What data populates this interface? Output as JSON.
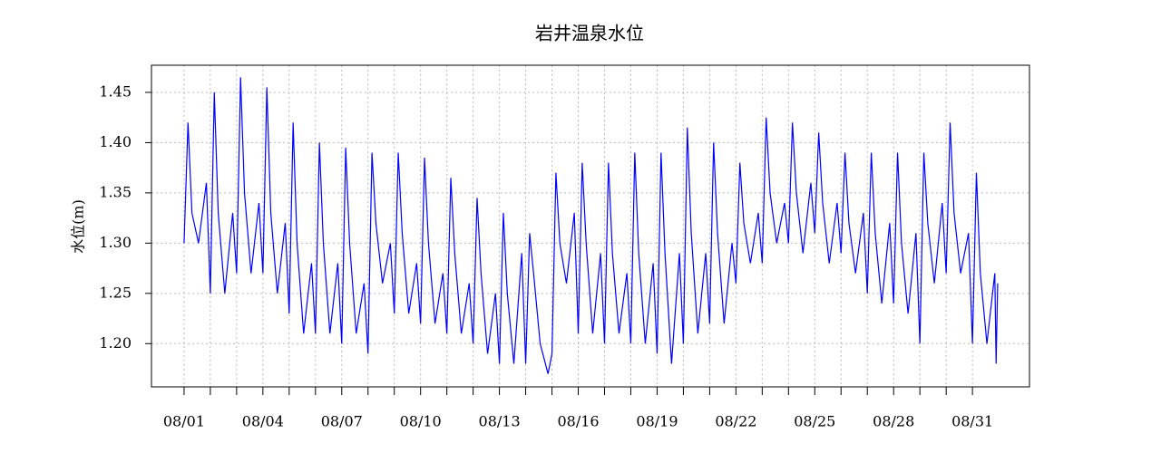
{
  "chart_data": {
    "type": "line",
    "title": "岩井温泉水位",
    "y_label": "水位(m)",
    "x": [
      0,
      0.15,
      0.3,
      0.55,
      0.85,
      1,
      1.15,
      1.3,
      1.55,
      1.85,
      2,
      2.15,
      2.3,
      2.55,
      2.85,
      3,
      3.15,
      3.3,
      3.55,
      3.85,
      4,
      4.15,
      4.3,
      4.55,
      4.85,
      5,
      5.15,
      5.3,
      5.55,
      5.85,
      6,
      6.15,
      6.3,
      6.55,
      6.85,
      7,
      7.15,
      7.3,
      7.55,
      7.85,
      8,
      8.15,
      8.3,
      8.55,
      8.85,
      9,
      9.15,
      9.3,
      9.55,
      9.85,
      10,
      10.15,
      10.3,
      10.55,
      10.85,
      11,
      11.15,
      11.3,
      11.55,
      11.85,
      12,
      12.15,
      12.3,
      12.55,
      12.85,
      13,
      13.15,
      13.3,
      13.55,
      13.85,
      14,
      14.15,
      14.3,
      14.55,
      14.85,
      15,
      15.15,
      15.3,
      15.55,
      15.85,
      16,
      16.15,
      16.3,
      16.55,
      16.85,
      17,
      17.15,
      17.3,
      17.55,
      17.85,
      18,
      18.15,
      18.3,
      18.55,
      18.85,
      19,
      19.15,
      19.3,
      19.55,
      19.85,
      20,
      20.15,
      20.3,
      20.55,
      20.85,
      21,
      21.15,
      21.3,
      21.55,
      21.85,
      22,
      22.15,
      22.3,
      22.55,
      22.85,
      23,
      23.15,
      23.3,
      23.55,
      23.85,
      24,
      24.15,
      24.3,
      24.55,
      24.85,
      25,
      25.15,
      25.3,
      25.55,
      25.85,
      26,
      26.15,
      26.3,
      26.55,
      26.85,
      27,
      27.15,
      27.3,
      27.55,
      27.85,
      28,
      28.15,
      28.3,
      28.55,
      28.85,
      29,
      29.15,
      29.3,
      29.55,
      29.85,
      30,
      30.15,
      30.3,
      30.55,
      30.85,
      30.9,
      30.96
    ],
    "series": [
      {
        "name": "水位",
        "color": "#0000ff",
        "values": [
          1.3,
          1.42,
          1.33,
          1.3,
          1.36,
          1.25,
          1.45,
          1.33,
          1.25,
          1.33,
          1.27,
          1.465,
          1.35,
          1.27,
          1.34,
          1.27,
          1.455,
          1.33,
          1.25,
          1.32,
          1.23,
          1.42,
          1.3,
          1.21,
          1.28,
          1.21,
          1.4,
          1.3,
          1.21,
          1.28,
          1.2,
          1.395,
          1.3,
          1.21,
          1.26,
          1.19,
          1.39,
          1.32,
          1.26,
          1.3,
          1.23,
          1.39,
          1.31,
          1.23,
          1.28,
          1.22,
          1.385,
          1.3,
          1.22,
          1.27,
          1.21,
          1.365,
          1.29,
          1.21,
          1.26,
          1.2,
          1.345,
          1.27,
          1.19,
          1.25,
          1.18,
          1.33,
          1.25,
          1.18,
          1.29,
          1.18,
          1.31,
          1.27,
          1.2,
          1.17,
          1.19,
          1.37,
          1.3,
          1.26,
          1.33,
          1.21,
          1.38,
          1.3,
          1.21,
          1.29,
          1.2,
          1.38,
          1.29,
          1.21,
          1.27,
          1.2,
          1.39,
          1.29,
          1.2,
          1.28,
          1.19,
          1.39,
          1.29,
          1.18,
          1.29,
          1.2,
          1.415,
          1.31,
          1.21,
          1.29,
          1.22,
          1.4,
          1.31,
          1.22,
          1.3,
          1.26,
          1.38,
          1.32,
          1.28,
          1.33,
          1.28,
          1.425,
          1.35,
          1.3,
          1.34,
          1.3,
          1.42,
          1.35,
          1.29,
          1.36,
          1.31,
          1.41,
          1.34,
          1.28,
          1.34,
          1.29,
          1.39,
          1.32,
          1.27,
          1.33,
          1.25,
          1.39,
          1.31,
          1.24,
          1.32,
          1.24,
          1.39,
          1.3,
          1.23,
          1.31,
          1.2,
          1.39,
          1.32,
          1.26,
          1.34,
          1.27,
          1.42,
          1.33,
          1.27,
          1.31,
          1.2,
          1.37,
          1.27,
          1.2,
          1.27,
          1.18,
          1.26
        ]
      }
    ],
    "xlim": [
      -1.24,
      32.17
    ],
    "xticks": [
      {
        "value": 0,
        "label": "08/01"
      },
      {
        "value": 3,
        "label": "08/04"
      },
      {
        "value": 6,
        "label": "08/07"
      },
      {
        "value": 9,
        "label": "08/10"
      },
      {
        "value": 12,
        "label": "08/13"
      },
      {
        "value": 15,
        "label": "08/16"
      },
      {
        "value": 18,
        "label": "08/19"
      },
      {
        "value": 21,
        "label": "08/22"
      },
      {
        "value": 24,
        "label": "08/25"
      },
      {
        "value": 27,
        "label": "08/28"
      },
      {
        "value": 30,
        "label": "08/31"
      }
    ],
    "xminorticks": [
      1,
      2,
      4,
      5,
      7,
      8,
      10,
      11,
      13,
      14,
      16,
      17,
      19,
      20,
      22,
      23,
      25,
      26,
      28,
      29
    ],
    "ylim": [
      1.157,
      1.477
    ],
    "yticks": [
      {
        "value": 1.2,
        "label": "1.20"
      },
      1.25,
      {
        "value": 1.3,
        "label": "1.30"
      },
      1.35,
      {
        "value": 1.4,
        "label": "1.40"
      },
      1.45
    ],
    "grid": true
  }
}
